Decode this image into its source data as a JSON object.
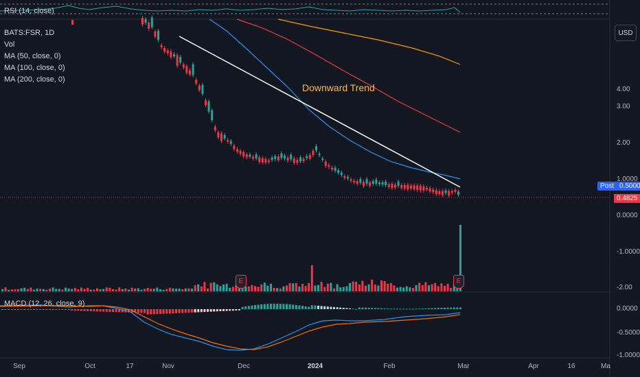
{
  "rsi": {
    "label": "RSI (14, close)"
  },
  "legend": {
    "symbol": "BATS:FSR, 1D",
    "vol": "Vol",
    "ma50": "MA (50, close, 0)",
    "ma100": "MA (100, close, 0)",
    "ma200": "MA (200, close, 0)"
  },
  "annotation": {
    "text": "Downward Trend",
    "color": "#ffb74d"
  },
  "currency_button": "USD",
  "price_axis": {
    "ticks": [
      "4.00",
      "3.00",
      "2.00",
      "1.0000",
      "0.0000",
      "-1.0000",
      "-2.00"
    ]
  },
  "post_badge": {
    "label": "Post",
    "value": "0.5000"
  },
  "last_price_badge": "0.4825",
  "macd": {
    "label": "MACD (12, 26, close, 9)",
    "ticks": [
      "0.0000",
      "-0.5000",
      "-1.0000"
    ]
  },
  "time_axis": {
    "labels": [
      "Sep",
      "Oct",
      "17",
      "Nov",
      "Dec",
      "2024",
      "Feb",
      "Mar",
      "Apr",
      "16",
      "Ma"
    ]
  },
  "earnings_marker": {
    "icon": "E"
  },
  "colors": {
    "up": "#26a69a",
    "down": "#f23645",
    "ma50": "#2196f3",
    "ma100": "#f23645",
    "ma200": "#ff9800",
    "trendline": "#ffffff",
    "rsi": "#26a69a",
    "macd_line": "#2196f3",
    "signal_line": "#ff6d00"
  }
}
